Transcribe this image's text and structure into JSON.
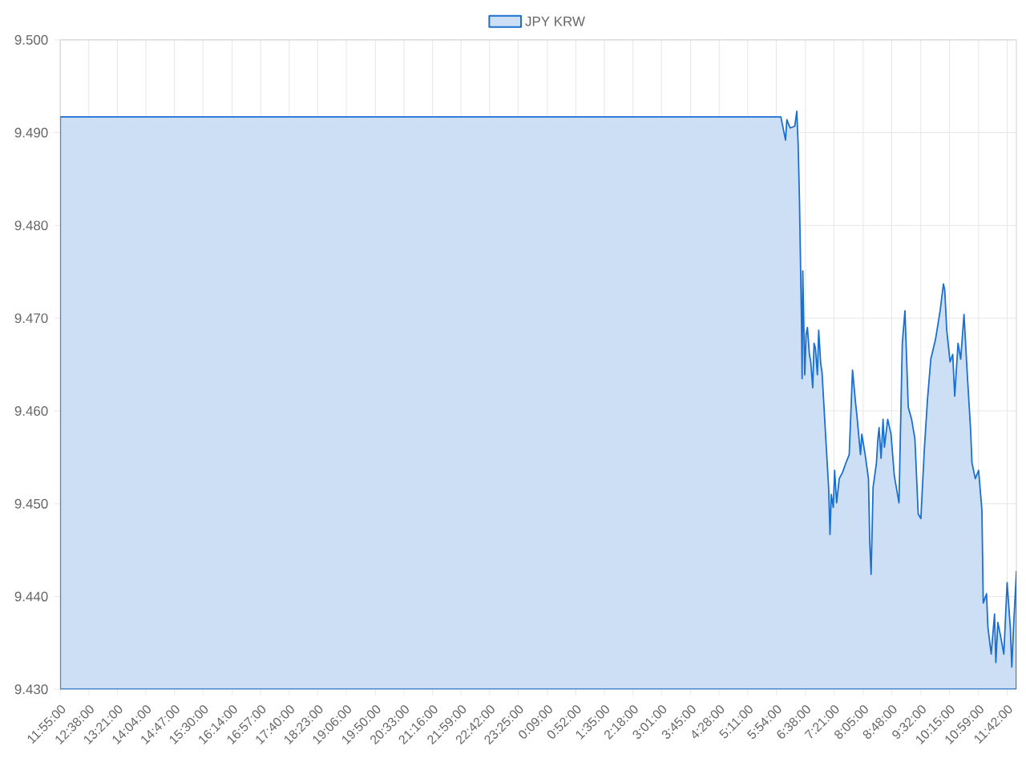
{
  "chart_data": {
    "type": "area",
    "x": [
      "2000-01-01T11:55",
      "2000-01-02T06:01",
      "2000-01-02T06:08",
      "2000-01-02T06:10",
      "2000-01-02T06:15",
      "2000-01-02T06:22",
      "2000-01-02T06:25",
      "2000-01-02T06:27",
      "2000-01-02T06:29",
      "2000-01-02T06:32",
      "2000-01-02T06:33",
      "2000-01-02T06:34",
      "2000-01-02T06:37",
      "2000-01-02T06:39",
      "2000-01-02T06:41",
      "2000-01-02T06:44",
      "2000-01-02T06:46",
      "2000-01-02T06:49",
      "2000-01-02T06:51",
      "2000-01-02T06:53",
      "2000-01-02T06:56",
      "2000-01-02T06:58",
      "2000-01-02T07:01",
      "2000-01-02T07:03",
      "2000-01-02T07:08",
      "2000-01-02T07:13",
      "2000-01-02T07:15",
      "2000-01-02T07:17",
      "2000-01-02T07:20",
      "2000-01-02T07:22",
      "2000-01-02T07:25",
      "2000-01-02T07:29",
      "2000-01-02T07:34",
      "2000-01-02T07:39",
      "2000-01-02T07:44",
      "2000-01-02T07:49",
      "2000-01-02T07:53",
      "2000-01-02T07:56",
      "2000-01-02T08:01",
      "2000-01-02T08:03",
      "2000-01-02T08:08",
      "2000-01-02T08:13",
      "2000-01-02T08:15",
      "2000-01-02T08:17",
      "2000-01-02T08:20",
      "2000-01-02T08:25",
      "2000-01-02T08:27",
      "2000-01-02T08:29",
      "2000-01-02T08:32",
      "2000-01-02T08:35",
      "2000-01-02T08:37",
      "2000-01-02T08:42",
      "2000-01-02T08:47",
      "2000-01-02T08:52",
      "2000-01-02T08:59",
      "2000-01-02T09:04",
      "2000-01-02T09:08",
      "2000-01-02T09:13",
      "2000-01-02T09:18",
      "2000-01-02T09:23",
      "2000-01-02T09:28",
      "2000-01-02T09:32",
      "2000-01-02T09:37",
      "2000-01-02T09:42",
      "2000-01-02T09:47",
      "2000-01-02T09:54",
      "2000-01-02T10:01",
      "2000-01-02T10:06",
      "2000-01-02T10:08",
      "2000-01-02T10:11",
      "2000-01-02T10:16",
      "2000-01-02T10:20",
      "2000-01-02T10:23",
      "2000-01-02T10:28",
      "2000-01-02T10:32",
      "2000-01-02T10:37",
      "2000-01-02T10:42",
      "2000-01-02T10:47",
      "2000-01-02T10:49",
      "2000-01-02T10:54",
      "2000-01-02T10:59",
      "2000-01-02T11:04",
      "2000-01-02T11:06",
      "2000-01-02T11:11",
      "2000-01-02T11:13",
      "2000-01-02T11:18",
      "2000-01-02T11:23",
      "2000-01-02T11:25",
      "2000-01-02T11:28",
      "2000-01-02T11:32",
      "2000-01-02T11:37",
      "2000-01-02T11:42",
      "2000-01-02T11:47",
      "2000-01-02T11:49",
      "2000-01-02T11:52",
      "2000-01-02T11:56"
    ],
    "series": [
      {
        "name": "JPY KRW",
        "color": "#1a6fd1",
        "values": [
          9.4917,
          9.4917,
          9.4892,
          9.4914,
          9.4905,
          9.4907,
          9.4923,
          9.4888,
          9.4828,
          9.4699,
          9.4635,
          9.4751,
          9.4639,
          9.4682,
          9.469,
          9.4661,
          9.4653,
          9.4625,
          9.4673,
          9.4668,
          9.4639,
          9.4687,
          9.4651,
          9.4642,
          9.4579,
          9.4517,
          9.4467,
          9.451,
          9.4496,
          9.4536,
          9.4501,
          9.4527,
          9.4534,
          9.4544,
          9.4553,
          9.4644,
          9.4613,
          9.4592,
          9.4553,
          9.4575,
          9.4553,
          9.4527,
          9.4458,
          9.4424,
          9.4518,
          9.4544,
          9.4568,
          9.4582,
          9.4549,
          9.4591,
          9.4561,
          9.4591,
          9.4575,
          9.453,
          9.4501,
          9.4673,
          9.4708,
          9.4604,
          9.4591,
          9.457,
          9.4489,
          9.4484,
          9.4556,
          9.4613,
          9.4656,
          9.4677,
          9.4708,
          9.4737,
          9.473,
          9.4687,
          9.4653,
          9.4661,
          9.4616,
          9.4673,
          9.4656,
          9.4704,
          9.4639,
          9.4579,
          9.4544,
          9.4527,
          9.4536,
          9.4493,
          9.4393,
          9.4403,
          9.4367,
          9.4338,
          9.4381,
          9.4329,
          9.4372,
          9.4358,
          9.4338,
          9.4415,
          9.4364,
          9.4324,
          9.4372,
          9.4427
        ]
      }
    ],
    "xlim": [
      "2000-01-01T11:55",
      "2000-01-02T11:56"
    ],
    "ylim": [
      9.43,
      9.5
    ],
    "xticks": [
      {
        "value": "2000-01-01T11:55",
        "label": "11:55:00"
      },
      {
        "value": "2000-01-01T12:38",
        "label": "12:38:00"
      },
      {
        "value": "2000-01-01T13:21",
        "label": "13:21:00"
      },
      {
        "value": "2000-01-01T14:04",
        "label": "14:04:00"
      },
      {
        "value": "2000-01-01T14:47",
        "label": "14:47:00"
      },
      {
        "value": "2000-01-01T15:30",
        "label": "15:30:00"
      },
      {
        "value": "2000-01-01T16:14",
        "label": "16:14:00"
      },
      {
        "value": "2000-01-01T16:57",
        "label": "16:57:00"
      },
      {
        "value": "2000-01-01T17:40",
        "label": "17:40:00"
      },
      {
        "value": "2000-01-01T18:23",
        "label": "18:23:00"
      },
      {
        "value": "2000-01-01T19:06",
        "label": "19:06:00"
      },
      {
        "value": "2000-01-01T19:50",
        "label": "19:50:00"
      },
      {
        "value": "2000-01-01T20:33",
        "label": "20:33:00"
      },
      {
        "value": "2000-01-01T21:16",
        "label": "21:16:00"
      },
      {
        "value": "2000-01-01T21:59",
        "label": "21:59:00"
      },
      {
        "value": "2000-01-01T22:42",
        "label": "22:42:00"
      },
      {
        "value": "2000-01-01T23:25",
        "label": "23:25:00"
      },
      {
        "value": "2000-01-02T00:09",
        "label": "0:09:00"
      },
      {
        "value": "2000-01-02T00:52",
        "label": "0:52:00"
      },
      {
        "value": "2000-01-02T01:35",
        "label": "1:35:00"
      },
      {
        "value": "2000-01-02T02:18",
        "label": "2:18:00"
      },
      {
        "value": "2000-01-02T03:01",
        "label": "3:01:00"
      },
      {
        "value": "2000-01-02T03:45",
        "label": "3:45:00"
      },
      {
        "value": "2000-01-02T04:28",
        "label": "4:28:00"
      },
      {
        "value": "2000-01-02T05:11",
        "label": "5:11:00"
      },
      {
        "value": "2000-01-02T05:54",
        "label": "5:54:00"
      },
      {
        "value": "2000-01-02T06:38",
        "label": "6:38:00"
      },
      {
        "value": "2000-01-02T07:21",
        "label": "7:21:00"
      },
      {
        "value": "2000-01-02T08:05",
        "label": "8:05:00"
      },
      {
        "value": "2000-01-02T08:48",
        "label": "8:48:00"
      },
      {
        "value": "2000-01-02T09:32",
        "label": "9:32:00"
      },
      {
        "value": "2000-01-02T10:15",
        "label": "10:15:00"
      },
      {
        "value": "2000-01-02T10:59",
        "label": "10:59:00"
      },
      {
        "value": "2000-01-02T11:42",
        "label": "11:42:00"
      }
    ],
    "yticks": [
      {
        "value": 9.43,
        "label": "9.430"
      },
      {
        "value": 9.44,
        "label": "9.440"
      },
      {
        "value": 9.45,
        "label": "9.450"
      },
      {
        "value": 9.46,
        "label": "9.460"
      },
      {
        "value": 9.47,
        "label": "9.470"
      },
      {
        "value": 9.48,
        "label": "9.480"
      },
      {
        "value": 9.49,
        "label": "9.490"
      },
      {
        "value": 9.5,
        "label": "9.500"
      }
    ],
    "grid": true,
    "legend": "top",
    "marker": "none",
    "line_style": "solid"
  }
}
